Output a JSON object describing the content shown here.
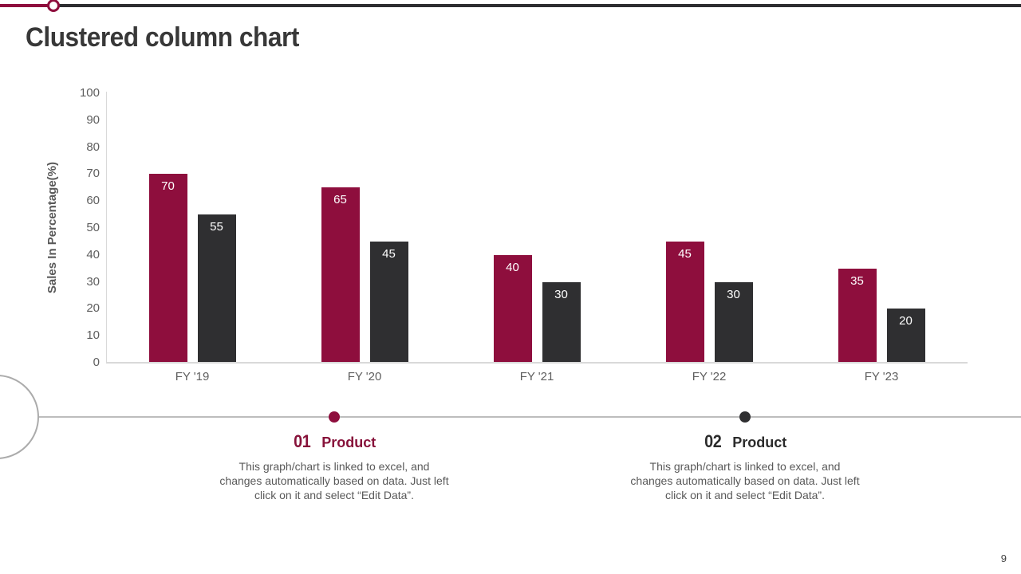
{
  "page": {
    "title": "Clustered column chart",
    "page_number": "9"
  },
  "colors": {
    "accent": "#8E0E3D",
    "dark": "#2F2F31",
    "axis_line": "#D9D9D9",
    "text_gray": "#595959"
  },
  "chart_data": {
    "type": "bar",
    "title": "Clustered column chart",
    "categories": [
      "FY '19",
      "FY '20",
      "FY '21",
      "FY '22",
      "FY '23"
    ],
    "series": [
      {
        "name": "Product 01",
        "color": "#8E0E3D",
        "values": [
          70,
          65,
          40,
          45,
          35
        ]
      },
      {
        "name": "Product 02",
        "color": "#2F2F31",
        "values": [
          55,
          45,
          30,
          30,
          20
        ]
      }
    ],
    "xlabel": "",
    "ylabel": "Sales In Percentage(%)",
    "ylim": [
      0,
      100
    ],
    "ytick_step": 10,
    "grid": false,
    "legend_position": "below",
    "value_labels": "inside-top-white"
  },
  "legend": {
    "items": [
      {
        "number": "01",
        "label": "Product",
        "color": "#87123A",
        "dot_color": "#8E0E3D",
        "lines": [
          "This graph/chart is linked to excel, and",
          "changes automatically based on data. Just left",
          "click on it and select “Edit Data”."
        ]
      },
      {
        "number": "02",
        "label": "Product",
        "color": "#2B2B2B",
        "dot_color": "#2F2F31",
        "lines": [
          "This graph/chart is linked to excel, and",
          "changes automatically based on data. Just left",
          "click on it and select “Edit Data”."
        ]
      }
    ]
  }
}
